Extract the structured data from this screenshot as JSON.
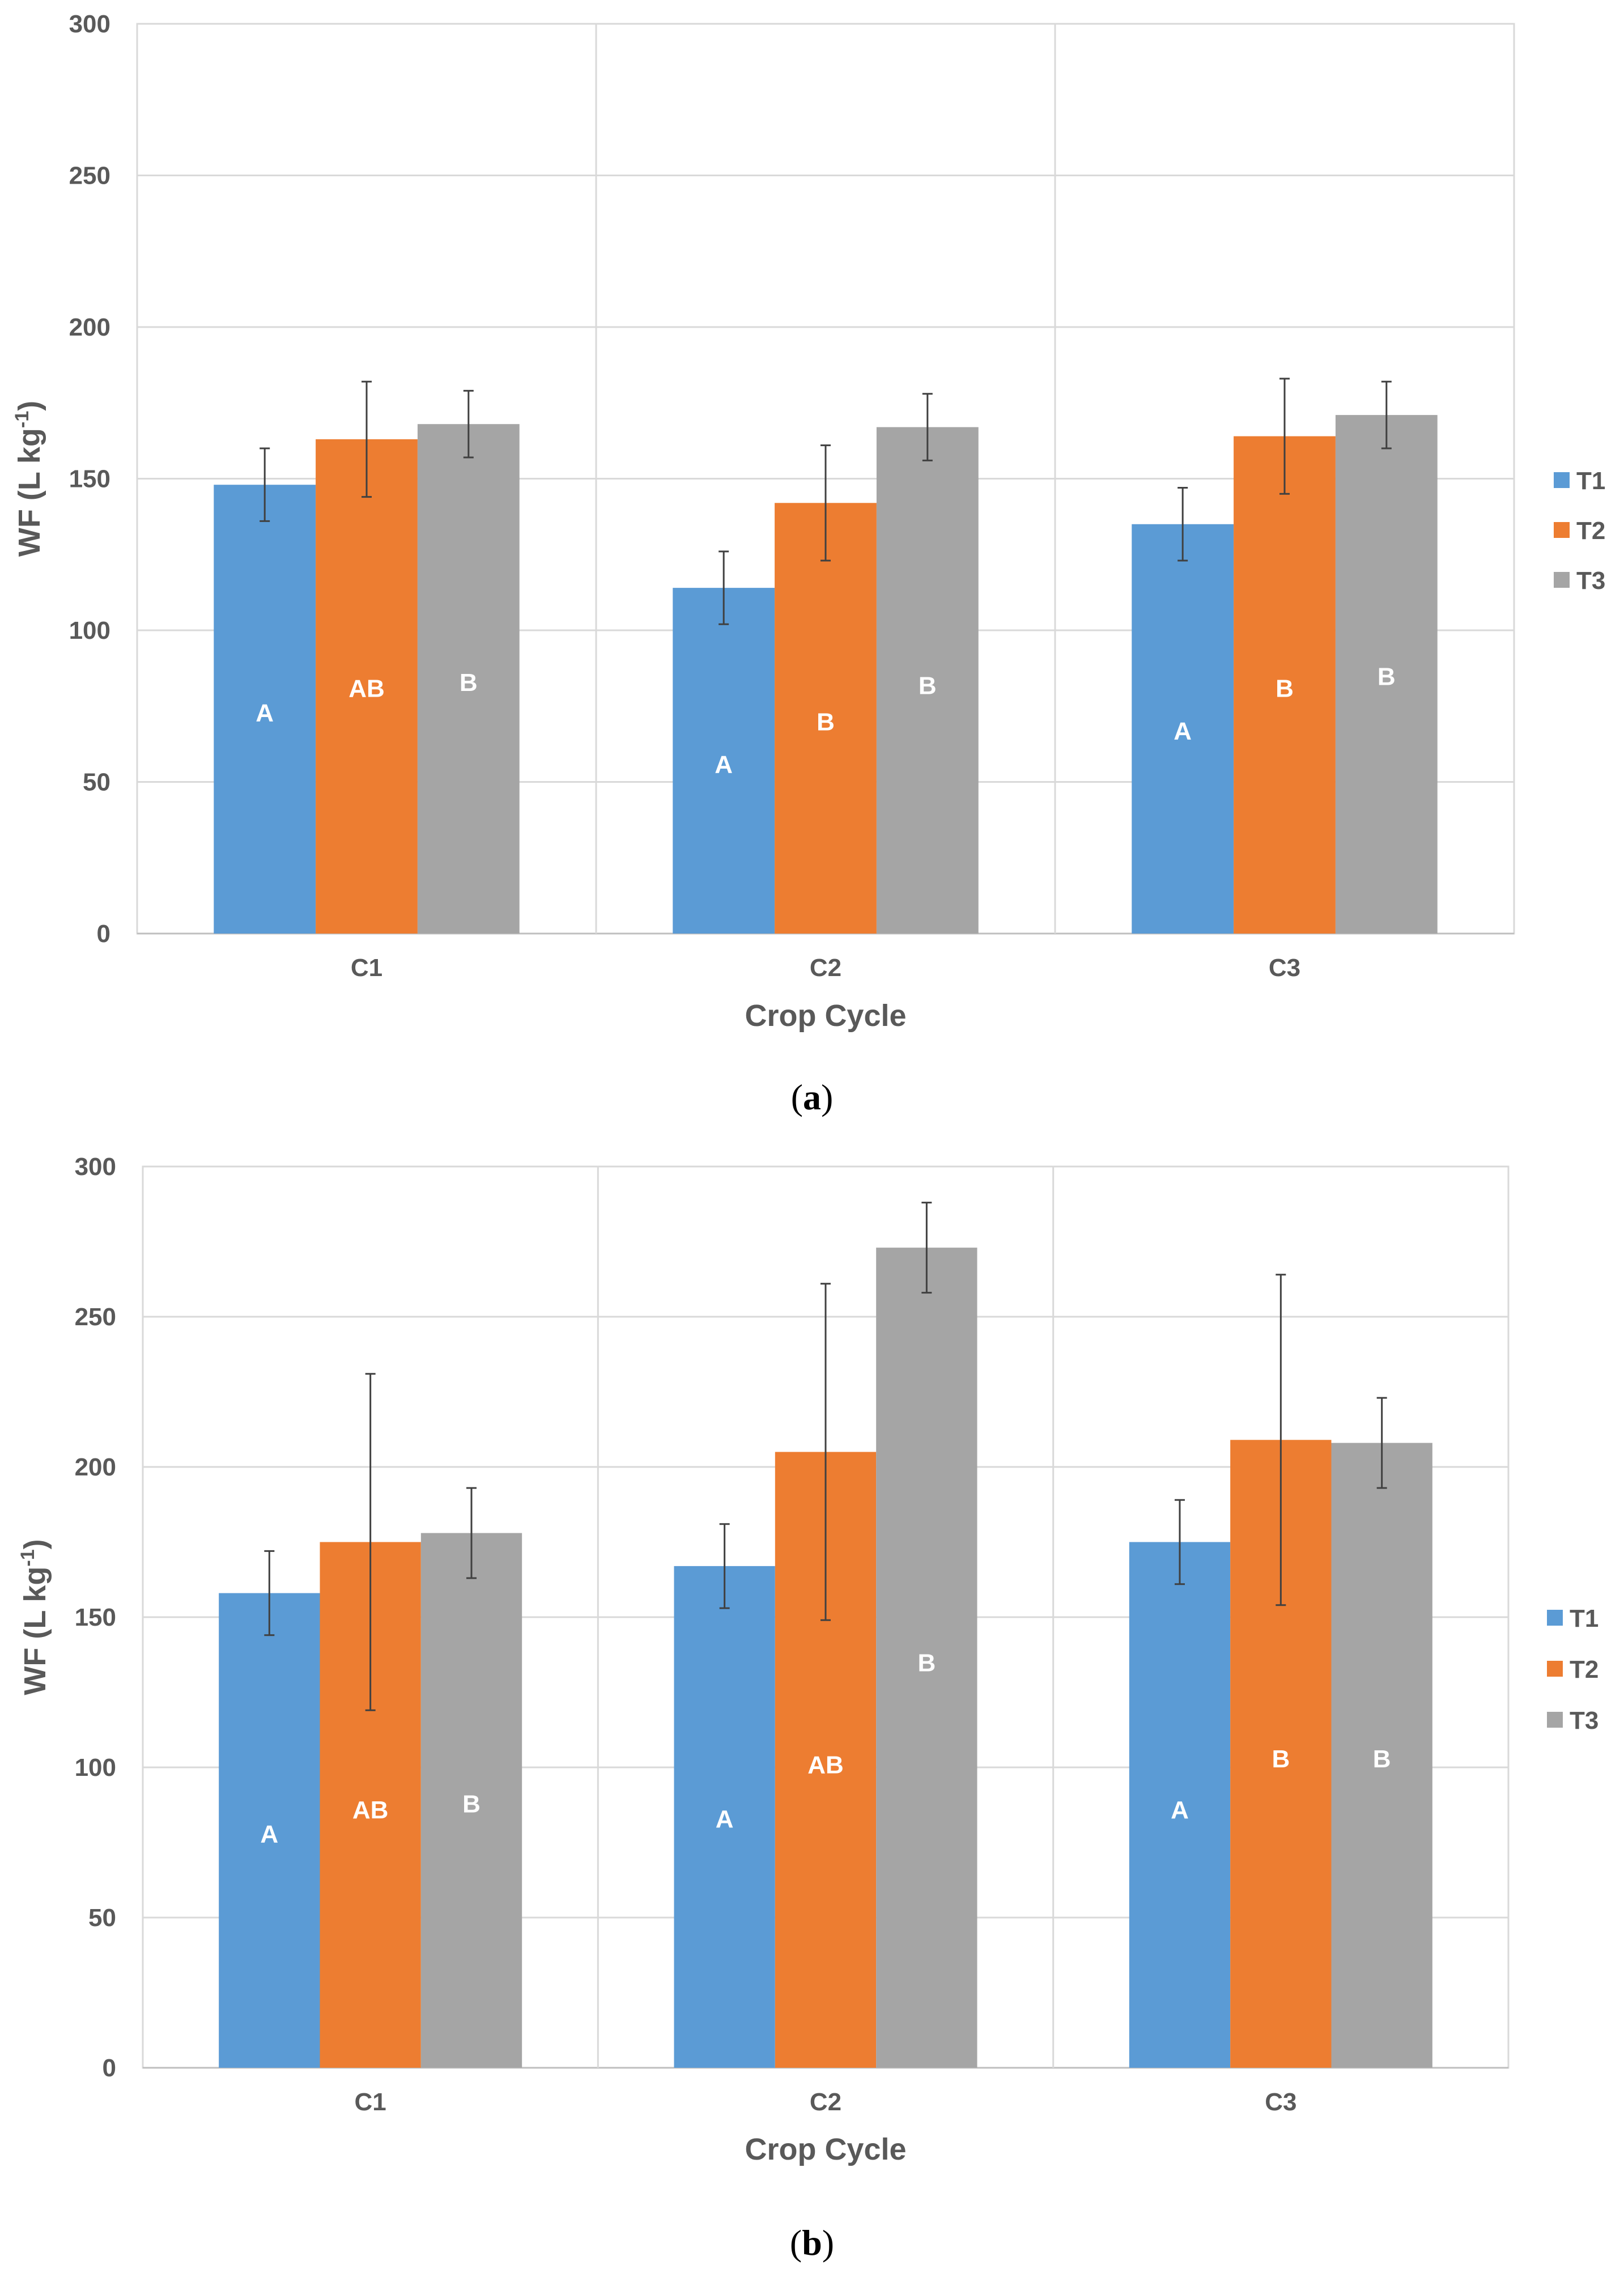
{
  "chart_data": [
    {
      "type": "bar",
      "panel_label": "a",
      "categories": [
        "C1",
        "C2",
        "C3"
      ],
      "series": [
        {
          "name": "T1",
          "color": "#5B9BD5",
          "values": [
            148,
            114,
            135
          ],
          "errors": [
            12,
            12,
            12
          ],
          "letters": [
            "A",
            "A",
            "A"
          ],
          "letter_y": [
            73,
            56,
            67
          ]
        },
        {
          "name": "T2",
          "color": "#ED7D31",
          "values": [
            163,
            142,
            164
          ],
          "errors": [
            19,
            19,
            19
          ],
          "letters": [
            "AB",
            "B",
            "B"
          ],
          "letter_y": [
            81,
            70,
            81
          ]
        },
        {
          "name": "T3",
          "color": "#A5A5A5",
          "values": [
            168,
            167,
            171
          ],
          "errors": [
            11,
            11,
            11
          ],
          "letters": [
            "B",
            "B",
            "B"
          ],
          "letter_y": [
            83,
            82,
            85
          ]
        }
      ],
      "xlabel": "Crop Cycle",
      "ylabel": "WF (L kg",
      "ylabel_sup": "-1",
      "ylabel_end": ")",
      "ylim": [
        0,
        300
      ],
      "yticks": [
        "0",
        "50",
        "100",
        "150",
        "200",
        "250",
        "300"
      ],
      "legend": "right",
      "grid": true
    },
    {
      "type": "bar",
      "panel_label": "b",
      "categories": [
        "C1",
        "C2",
        "C3"
      ],
      "series": [
        {
          "name": "T1",
          "color": "#5B9BD5",
          "values": [
            158,
            167,
            175
          ],
          "errors": [
            14,
            14,
            14
          ],
          "letters": [
            "A",
            "A",
            "A"
          ],
          "letter_y": [
            78,
            83,
            86
          ]
        },
        {
          "name": "T2",
          "color": "#ED7D31",
          "values": [
            175,
            205,
            209
          ],
          "errors": [
            56,
            56,
            55
          ],
          "letters": [
            "AB",
            "AB",
            "B"
          ],
          "letter_y": [
            86,
            101,
            103
          ]
        },
        {
          "name": "T3",
          "color": "#A5A5A5",
          "values": [
            178,
            273,
            208
          ],
          "errors": [
            15,
            15,
            15
          ],
          "letters": [
            "B",
            "B",
            "B"
          ],
          "letter_y": [
            88,
            135,
            103
          ]
        }
      ],
      "xlabel": "Crop Cycle",
      "ylabel": "WF (L kg",
      "ylabel_sup": "-1",
      "ylabel_end": ")",
      "ylim": [
        0,
        300
      ],
      "yticks": [
        "0",
        "50",
        "100",
        "150",
        "200",
        "250",
        "300"
      ],
      "legend": "right",
      "grid": true
    }
  ]
}
